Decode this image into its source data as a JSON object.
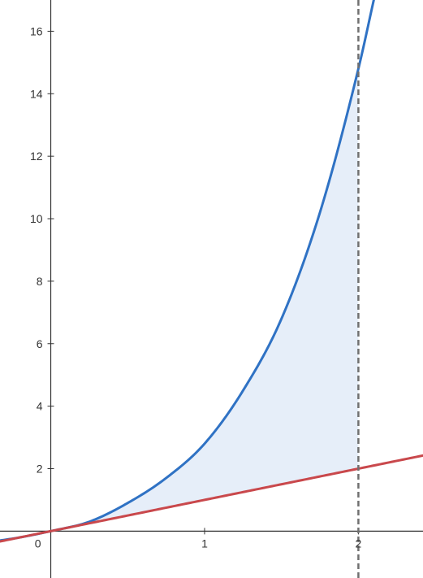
{
  "chart_data": {
    "type": "area",
    "title": "",
    "xlabel": "",
    "ylabel": "",
    "xlim": [
      -0.33,
      2.42
    ],
    "ylim": [
      -1.5,
      17
    ],
    "grid": false,
    "x_ticks": [
      1,
      2
    ],
    "x_tick_labels": [
      "1",
      "2"
    ],
    "y_ticks": [
      2,
      4,
      6,
      8,
      10,
      12,
      14,
      16
    ],
    "y_tick_labels": [
      "2",
      "4",
      "6",
      "8",
      "10",
      "12",
      "14",
      "16"
    ],
    "origin_label": "0",
    "series": [
      {
        "color": "#2f72c4",
        "x": [
          -0.33,
          -0.2,
          0,
          0.25,
          0.5,
          0.75,
          1.0,
          1.25,
          1.5,
          1.75,
          2.0,
          2.1
        ],
        "values": [
          -0.3,
          -0.2,
          0,
          0.3,
          0.9,
          1.7,
          2.8,
          4.5,
          6.8,
          10.2,
          14.8,
          17.0
        ]
      },
      {
        "color": "#c9484c",
        "x": [
          -0.33,
          0,
          1,
          2,
          2.42
        ],
        "values": [
          -0.33,
          0,
          1,
          2,
          2.42
        ]
      }
    ],
    "shaded_region": {
      "x_from": 0,
      "x_to": 2,
      "between_series": [
        0,
        1
      ],
      "color": "#e6eef9"
    },
    "vertical_line": {
      "x": 2,
      "style": "dashed",
      "color": "#707070"
    },
    "axis_color": "#333333"
  }
}
